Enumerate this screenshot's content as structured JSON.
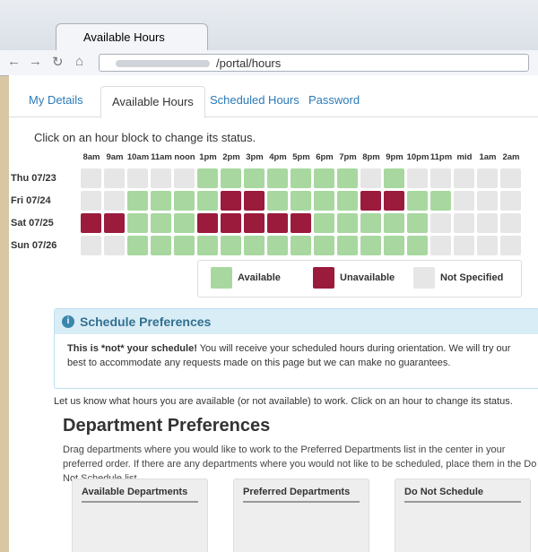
{
  "browser": {
    "tab_title": "Available Hours",
    "url": "/portal/hours"
  },
  "tabs": [
    "My Details",
    "Available Hours",
    "Scheduled Hours",
    "Password"
  ],
  "active_tab": 1,
  "instruction": "Click on an hour block to change its status.",
  "hours": [
    "8am",
    "9am",
    "10am",
    "11am",
    "noon",
    "1pm",
    "2pm",
    "3pm",
    "4pm",
    "5pm",
    "6pm",
    "7pm",
    "8pm",
    "9pm",
    "10pm",
    "11pm",
    "mid",
    "1am",
    "2am"
  ],
  "days": [
    {
      "label": "Thu 07/23",
      "states": [
        2,
        2,
        2,
        2,
        2,
        0,
        0,
        0,
        0,
        0,
        0,
        0,
        2,
        0,
        2,
        2,
        2,
        2,
        2
      ]
    },
    {
      "label": "Fri 07/24",
      "states": [
        2,
        2,
        0,
        0,
        0,
        0,
        1,
        1,
        0,
        0,
        0,
        0,
        1,
        1,
        0,
        0,
        2,
        2,
        2
      ]
    },
    {
      "label": "Sat 07/25",
      "states": [
        1,
        1,
        0,
        0,
        0,
        1,
        1,
        1,
        1,
        1,
        0,
        0,
        0,
        0,
        0,
        2,
        2,
        2,
        2
      ]
    },
    {
      "label": "Sun 07/26",
      "states": [
        2,
        2,
        0,
        0,
        0,
        0,
        0,
        0,
        0,
        0,
        0,
        0,
        0,
        0,
        0,
        2,
        2,
        2,
        2
      ]
    }
  ],
  "legend": [
    {
      "label": "Available",
      "color": "#a8d8a0"
    },
    {
      "label": "Unavailable",
      "color": "#9b1b3c"
    },
    {
      "label": "Not Specified",
      "color": "#e6e6e6"
    }
  ],
  "schedule_panel": {
    "title": "Schedule Preferences",
    "bold": "This is *not* your schedule!",
    "text": "You will receive your scheduled hours during orientation. We will try our best to accommodate any requests made on this page but we can make no guarantees."
  },
  "intro": "Let us know what hours you are available (or not available) to work. Click on an hour to change its status.",
  "department": {
    "title": "Department Preferences",
    "text": "Drag departments where you would like to work to the Preferred Departments list in the center in your preferred order. If there are any departments where you would not like to be scheduled, place them in the Do Not Schedule list.",
    "columns": [
      "Available Departments",
      "Preferred Departments",
      "Do Not Schedule"
    ]
  }
}
